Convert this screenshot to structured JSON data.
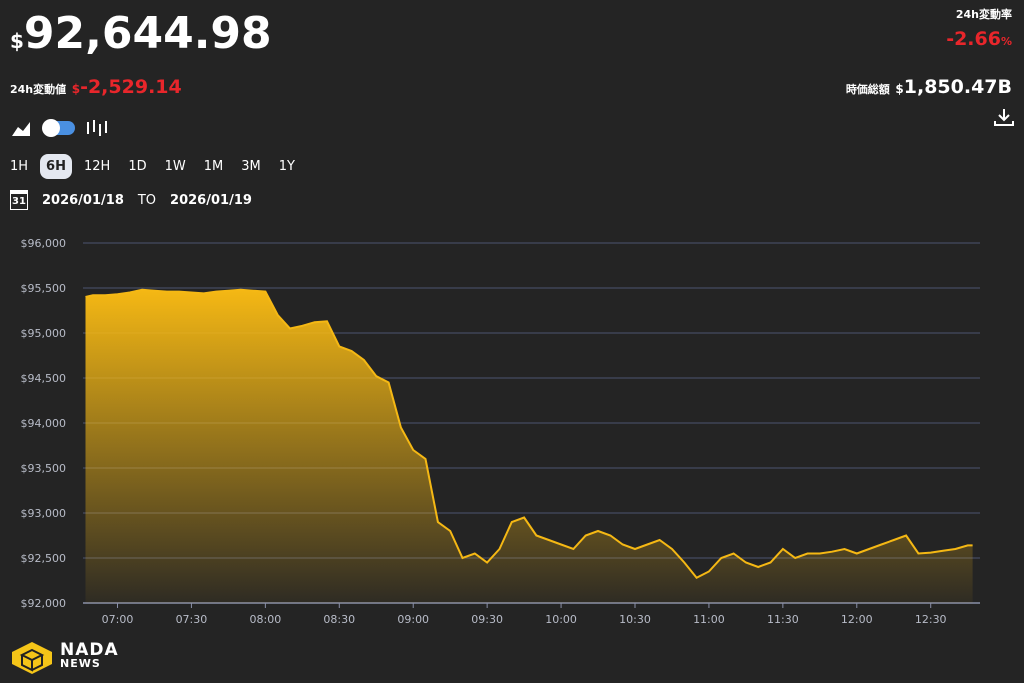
{
  "header": {
    "currency": "$",
    "price": "92,644.98",
    "change_label": "24h変動値",
    "change_currency": "$",
    "change": "-2,529.14",
    "change_pct_label": "24h変動率",
    "change_pct": "-2.66",
    "change_pct_unit": "%",
    "market_cap_label": "時価総額",
    "market_cap_currency": "$",
    "market_cap": "1,850.47B"
  },
  "ranges": [
    "1H",
    "6H",
    "12H",
    "1D",
    "1W",
    "1M",
    "3M",
    "1Y"
  ],
  "active_range": "6H",
  "date_range": {
    "icon_day": "31",
    "from": "2026/01/18",
    "separator": "TO",
    "to": "2026/01/19"
  },
  "logo": {
    "name": "NADA",
    "sub": "NEWS"
  },
  "chart_data": {
    "type": "area",
    "color": "#f5b814",
    "grid": true,
    "x": [
      "06:47",
      "06:50",
      "06:55",
      "07:00",
      "07:05",
      "07:10",
      "07:15",
      "07:20",
      "07:25",
      "07:30",
      "07:35",
      "07:40",
      "07:45",
      "07:50",
      "07:55",
      "08:00",
      "08:05",
      "08:10",
      "08:15",
      "08:20",
      "08:25",
      "08:30",
      "08:35",
      "08:40",
      "08:45",
      "08:50",
      "08:55",
      "09:00",
      "09:05",
      "09:10",
      "09:15",
      "09:20",
      "09:25",
      "09:30",
      "09:35",
      "09:40",
      "09:45",
      "09:50",
      "09:55",
      "10:00",
      "10:05",
      "10:10",
      "10:15",
      "10:20",
      "10:25",
      "10:30",
      "10:35",
      "10:40",
      "10:45",
      "10:50",
      "10:55",
      "11:00",
      "11:05",
      "11:10",
      "11:15",
      "11:20",
      "11:25",
      "11:30",
      "11:35",
      "11:40",
      "11:45",
      "11:50",
      "11:55",
      "12:00",
      "12:05",
      "12:10",
      "12:15",
      "12:20",
      "12:25",
      "12:30",
      "12:35",
      "12:40",
      "12:45",
      "12:47"
    ],
    "values": [
      95400,
      95420,
      95420,
      95430,
      95450,
      95480,
      95470,
      95460,
      95460,
      95450,
      95440,
      95460,
      95470,
      95480,
      95470,
      95460,
      95200,
      95050,
      95080,
      95120,
      95130,
      94850,
      94800,
      94700,
      94520,
      94450,
      93950,
      93700,
      93600,
      92900,
      92800,
      92500,
      92550,
      92450,
      92600,
      92900,
      92950,
      92750,
      92700,
      92650,
      92600,
      92750,
      92800,
      92750,
      92650,
      92600,
      92650,
      92700,
      92600,
      92450,
      92280,
      92350,
      92500,
      92550,
      92450,
      92400,
      92450,
      92600,
      92500,
      92550,
      92550,
      92570,
      92600,
      92550,
      92600,
      92650,
      92700,
      92750,
      92550,
      92560,
      92580,
      92600,
      92640,
      92640
    ],
    "xlim": [
      "06:46",
      "12:50"
    ],
    "xticks": [
      "07:00",
      "07:30",
      "08:00",
      "08:30",
      "09:00",
      "09:30",
      "10:00",
      "10:30",
      "11:00",
      "11:30",
      "12:00",
      "12:30"
    ],
    "ylim": [
      92000,
      96000
    ],
    "yticks": [
      {
        "value": 92000,
        "label": "$92,000"
      },
      {
        "value": 92500,
        "label": "$92,500"
      },
      {
        "value": 93000,
        "label": "$93,000"
      },
      {
        "value": 93500,
        "label": "$93,500"
      },
      {
        "value": 94000,
        "label": "$94,000"
      },
      {
        "value": 94500,
        "label": "$94,500"
      },
      {
        "value": 95000,
        "label": "$95,000"
      },
      {
        "value": 95500,
        "label": "$95,500"
      },
      {
        "value": 96000,
        "label": "$96,000"
      }
    ]
  }
}
